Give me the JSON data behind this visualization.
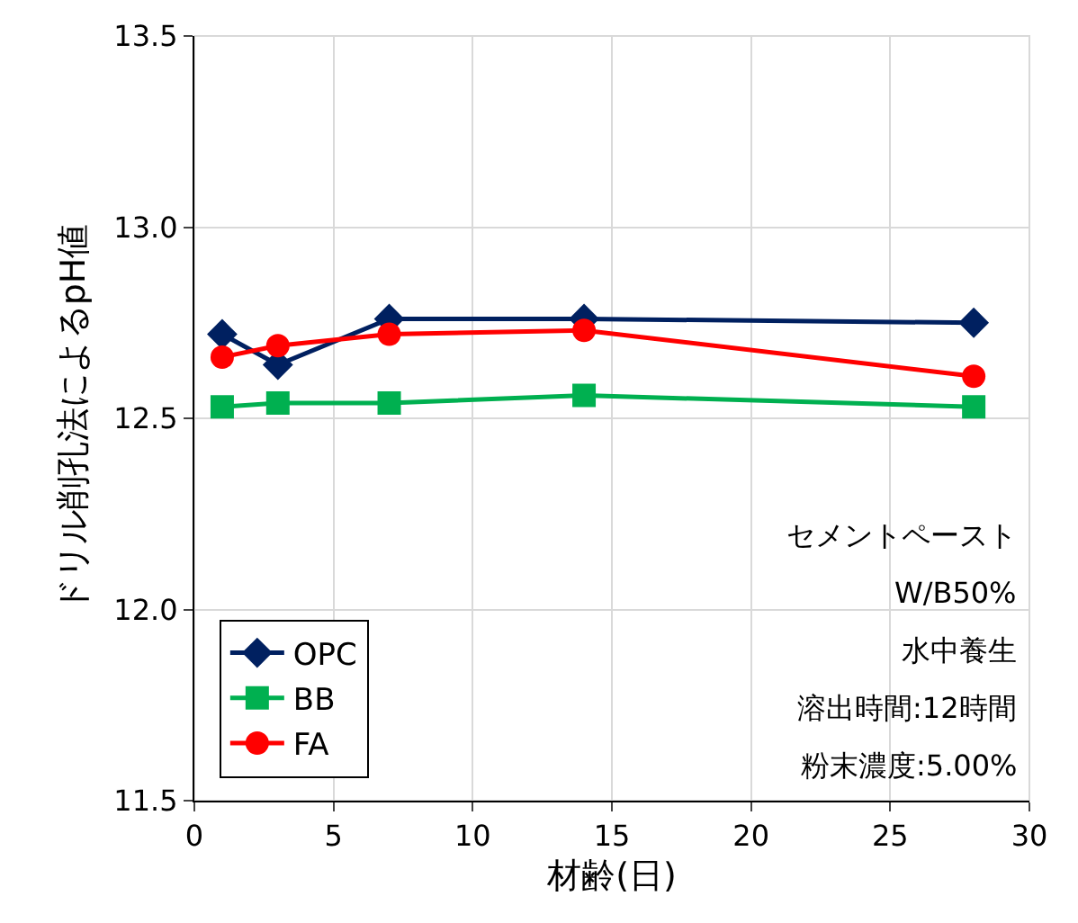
{
  "chart_data": {
    "type": "line",
    "xlabel": "材齢(日)",
    "ylabel": "ドリル削孔法によるpH値",
    "x": [
      1,
      3,
      7,
      14,
      28
    ],
    "series": [
      {
        "name": "OPC",
        "color": "#002060",
        "marker": "diamond",
        "values": [
          12.72,
          12.64,
          12.76,
          12.76,
          12.75
        ]
      },
      {
        "name": "BB",
        "color": "#00b050",
        "marker": "square",
        "values": [
          12.53,
          12.54,
          12.54,
          12.56,
          12.53
        ]
      },
      {
        "name": "FA",
        "color": "#ff0000",
        "marker": "circle",
        "values": [
          12.66,
          12.69,
          12.72,
          12.73,
          12.61
        ]
      }
    ],
    "xlim": [
      0,
      30
    ],
    "xticks": [
      0,
      5,
      10,
      15,
      20,
      25,
      30
    ],
    "ylim": [
      11.5,
      13.5
    ],
    "yticks": [
      {
        "value": 11.5,
        "label": "11.5"
      },
      {
        "value": 12,
        "label": "12.0"
      },
      {
        "value": 12.5,
        "label": "12.5"
      },
      {
        "value": 13,
        "label": "13.0"
      },
      {
        "value": 13.5,
        "label": "13.5"
      }
    ],
    "grid": true,
    "legend": "bottom left",
    "line_style": "solid",
    "annotations": [
      "セメントペースト",
      "W/B50%",
      "水中養生",
      "溶出時間:12時間",
      "粉末濃度:5.00%"
    ]
  }
}
